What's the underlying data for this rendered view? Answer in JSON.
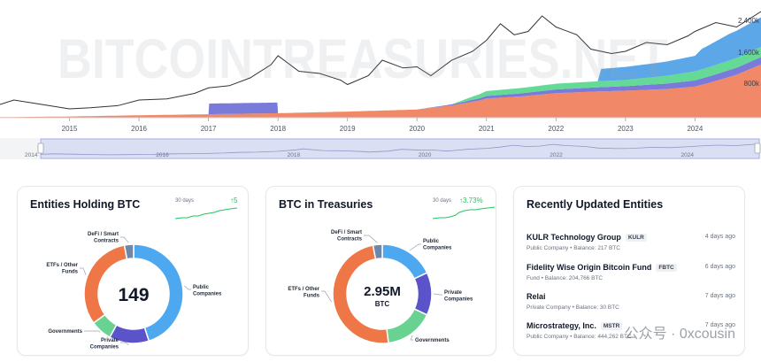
{
  "chart_data": {
    "type": "area",
    "watermark": "BITCOINTREASURIES.NET",
    "x_ticks": [
      "2015",
      "2016",
      "2017",
      "2018",
      "2019",
      "2020",
      "2021",
      "2022",
      "2023",
      "2024"
    ],
    "y_ticks": [
      "800k",
      "1,600k",
      "2,400k"
    ],
    "navigator_ticks": [
      "2014",
      "2016",
      "2018",
      "2020",
      "2022",
      "2024"
    ],
    "xlim": [
      2014.0,
      2024.95
    ],
    "ylim": [
      0,
      2700000
    ],
    "series": [
      {
        "color": "#f07f5c",
        "points": [
          [
            2014.0,
            15000
          ],
          [
            2015.0,
            30000
          ],
          [
            2016.0,
            60000
          ],
          [
            2017.0,
            85000
          ],
          [
            2018.0,
            110000
          ],
          [
            2019.0,
            150000
          ],
          [
            2020.0,
            200000
          ],
          [
            2020.5,
            300000
          ],
          [
            2020.9,
            420000
          ],
          [
            2021.0,
            470000
          ],
          [
            2021.5,
            520000
          ],
          [
            2022.0,
            600000
          ],
          [
            2022.6,
            640000
          ],
          [
            2023.0,
            660000
          ],
          [
            2023.6,
            700000
          ],
          [
            2024.0,
            760000
          ],
          [
            2024.2,
            850000
          ],
          [
            2024.6,
            1050000
          ],
          [
            2024.95,
            1300000
          ]
        ]
      },
      {
        "color": "#6e6fd6",
        "points": [
          [
            2014.0,
            0
          ],
          [
            2017.0,
            0
          ],
          [
            2017.01,
            260000
          ],
          [
            2017.99,
            260000
          ],
          [
            2018.0,
            0
          ],
          [
            2020.0,
            0
          ],
          [
            2020.4,
            20000
          ],
          [
            2021.0,
            60000
          ],
          [
            2022.0,
            90000
          ],
          [
            2023.0,
            110000
          ],
          [
            2024.0,
            150000
          ],
          [
            2024.95,
            180000
          ]
        ]
      },
      {
        "color": "#58d68d",
        "points": [
          [
            2014.0,
            0
          ],
          [
            2020.5,
            0
          ],
          [
            2020.8,
            80000
          ],
          [
            2021.0,
            120000
          ],
          [
            2022.0,
            140000
          ],
          [
            2023.0,
            150000
          ],
          [
            2024.0,
            220000
          ],
          [
            2024.95,
            250000
          ]
        ]
      },
      {
        "color": "#4e9fe6",
        "points": [
          [
            2014.0,
            0
          ],
          [
            2022.0,
            0
          ],
          [
            2022.6,
            0
          ],
          [
            2022.65,
            300000
          ],
          [
            2023.0,
            320000
          ],
          [
            2023.5,
            340000
          ],
          [
            2024.0,
            380000
          ],
          [
            2024.1,
            500000
          ],
          [
            2024.5,
            650000
          ],
          [
            2024.95,
            720000
          ]
        ]
      }
    ],
    "price_line": {
      "color": "#333333",
      "points": [
        [
          2014.0,
          0.12
        ],
        [
          2014.2,
          0.16
        ],
        [
          2014.5,
          0.13
        ],
        [
          2014.8,
          0.1
        ],
        [
          2015.0,
          0.08
        ],
        [
          2015.3,
          0.09
        ],
        [
          2015.7,
          0.11
        ],
        [
          2016.0,
          0.16
        ],
        [
          2016.4,
          0.17
        ],
        [
          2016.8,
          0.22
        ],
        [
          2017.0,
          0.27
        ],
        [
          2017.3,
          0.29
        ],
        [
          2017.6,
          0.36
        ],
        [
          2017.9,
          0.48
        ],
        [
          2018.0,
          0.56
        ],
        [
          2018.3,
          0.42
        ],
        [
          2018.6,
          0.4
        ],
        [
          2018.9,
          0.34
        ],
        [
          2019.0,
          0.3
        ],
        [
          2019.3,
          0.38
        ],
        [
          2019.5,
          0.52
        ],
        [
          2019.8,
          0.45
        ],
        [
          2020.0,
          0.46
        ],
        [
          2020.2,
          0.38
        ],
        [
          2020.5,
          0.52
        ],
        [
          2020.8,
          0.6
        ],
        [
          2021.0,
          0.7
        ],
        [
          2021.2,
          0.85
        ],
        [
          2021.4,
          0.75
        ],
        [
          2021.6,
          0.78
        ],
        [
          2021.8,
          0.92
        ],
        [
          2022.0,
          0.82
        ],
        [
          2022.3,
          0.75
        ],
        [
          2022.5,
          0.62
        ],
        [
          2022.8,
          0.58
        ],
        [
          2023.0,
          0.6
        ],
        [
          2023.3,
          0.68
        ],
        [
          2023.6,
          0.66
        ],
        [
          2023.9,
          0.74
        ],
        [
          2024.0,
          0.78
        ],
        [
          2024.3,
          0.86
        ],
        [
          2024.6,
          0.82
        ],
        [
          2024.95,
          0.96
        ]
      ]
    }
  },
  "cards": {
    "entities": {
      "title": "Entities Holding BTC",
      "spark_label": "30 days",
      "spark_value": "↑5",
      "center_value": "149",
      "center_sub": "",
      "segments": [
        {
          "label": "Public Companies",
          "value": 45,
          "color": "#4ea8f0"
        },
        {
          "label": "Private Companies",
          "value": 13,
          "color": "#5b53c9"
        },
        {
          "label": "Governments",
          "value": 7,
          "color": "#68d391"
        },
        {
          "label": "ETFs / Other Funds",
          "value": 32,
          "color": "#ef7747"
        },
        {
          "label": "DeFi / Smart Contracts",
          "value": 3,
          "color": "#6e87a8"
        }
      ]
    },
    "treasuries": {
      "title": "BTC in Treasuries",
      "spark_label": "30 days",
      "spark_value": "↑3.73%",
      "center_value": "2.95M",
      "center_sub": "BTC",
      "segments": [
        {
          "label": "Public Companies",
          "value": 18,
          "color": "#4ea8f0"
        },
        {
          "label": "Private Companies",
          "value": 14,
          "color": "#5b53c9"
        },
        {
          "label": "Governments",
          "value": 16,
          "color": "#68d391"
        },
        {
          "label": "ETFs / Other Funds",
          "value": 49,
          "color": "#ef7747"
        },
        {
          "label": "DeFi / Smart Contracts",
          "value": 3,
          "color": "#6e87a8"
        }
      ]
    }
  },
  "recent": {
    "title": "Recently Updated Entities",
    "items": [
      {
        "name": "KULR Technology Group",
        "ticker": "KULR",
        "type": "Public Company",
        "balance": "Balance: 217 BTC",
        "time": "4 days ago"
      },
      {
        "name": "Fidelity Wise Origin Bitcoin Fund",
        "ticker": "FBTC",
        "type": "Fund",
        "balance": "Balance: 204,766 BTC",
        "time": "6 days ago"
      },
      {
        "name": "Relai",
        "ticker": "",
        "type": "Private Company",
        "balance": "Balance: 30 BTC",
        "time": "7 days ago"
      },
      {
        "name": "Microstrategy, Inc.",
        "ticker": "MSTR",
        "type": "Public Company",
        "balance": "Balance: 444,262 BTC",
        "time": "7 days ago"
      }
    ],
    "separator": " • "
  },
  "footer_watermark": "公众号 · 0xcousin"
}
